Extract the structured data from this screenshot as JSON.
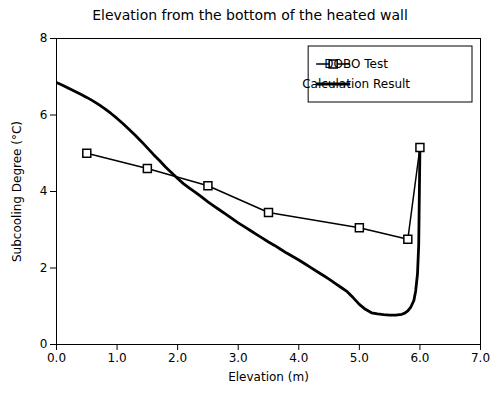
{
  "chart_data": {
    "type": "line",
    "title": "Elevation from the bottom of the heated wall",
    "xlabel": "Elevation (m)",
    "ylabel": "Subcooling Degree (°C)",
    "xlim": [
      0,
      7
    ],
    "ylim": [
      0,
      8
    ],
    "xticks": [
      0,
      1,
      2,
      3,
      4,
      5,
      6,
      7
    ],
    "yticks": [
      0,
      2,
      4,
      6,
      8
    ],
    "grid": false,
    "legend": "upper right",
    "series": [
      {
        "name": "DOBO Test",
        "color": "#000000",
        "marker": "square",
        "line_style": "solid",
        "x": [
          0.5,
          1.5,
          2.5,
          3.5,
          5.0,
          5.8,
          6.0
        ],
        "values": [
          5.0,
          4.6,
          4.15,
          3.45,
          3.05,
          2.75,
          5.15
        ]
      },
      {
        "name": "Calculation Result",
        "color": "#000000",
        "line_style": "solid",
        "x": [
          0.0,
          0.1,
          0.2,
          0.3,
          0.4,
          0.5,
          0.6,
          0.7,
          0.8,
          0.9,
          1.0,
          1.1,
          1.2,
          1.3,
          1.4,
          1.5,
          1.6,
          1.7,
          1.8,
          1.9,
          2.0,
          2.1,
          2.2,
          2.3,
          2.4,
          2.5,
          2.6,
          2.7,
          2.8,
          2.9,
          3.0,
          3.1,
          3.2,
          3.3,
          3.4,
          3.5,
          3.6,
          3.7,
          3.8,
          3.9,
          4.0,
          4.1,
          4.2,
          4.3,
          4.4,
          4.5,
          4.6,
          4.7,
          4.8,
          4.9,
          5.0,
          5.1,
          5.2,
          5.3,
          5.4,
          5.5,
          5.6,
          5.7,
          5.75,
          5.8,
          5.85,
          5.9,
          5.93,
          5.96,
          5.98,
          6.0
        ],
        "values": [
          6.85,
          6.78,
          6.7,
          6.62,
          6.54,
          6.46,
          6.37,
          6.27,
          6.16,
          6.04,
          5.91,
          5.77,
          5.62,
          5.47,
          5.31,
          5.14,
          4.97,
          4.81,
          4.64,
          4.49,
          4.34,
          4.2,
          4.08,
          3.97,
          3.85,
          3.73,
          3.62,
          3.51,
          3.4,
          3.29,
          3.18,
          3.08,
          2.98,
          2.88,
          2.78,
          2.68,
          2.59,
          2.49,
          2.39,
          2.3,
          2.21,
          2.11,
          2.01,
          1.91,
          1.81,
          1.71,
          1.6,
          1.49,
          1.38,
          1.22,
          1.05,
          0.92,
          0.83,
          0.8,
          0.78,
          0.77,
          0.77,
          0.79,
          0.82,
          0.88,
          0.98,
          1.15,
          1.4,
          1.85,
          2.6,
          5.15
        ]
      }
    ]
  }
}
